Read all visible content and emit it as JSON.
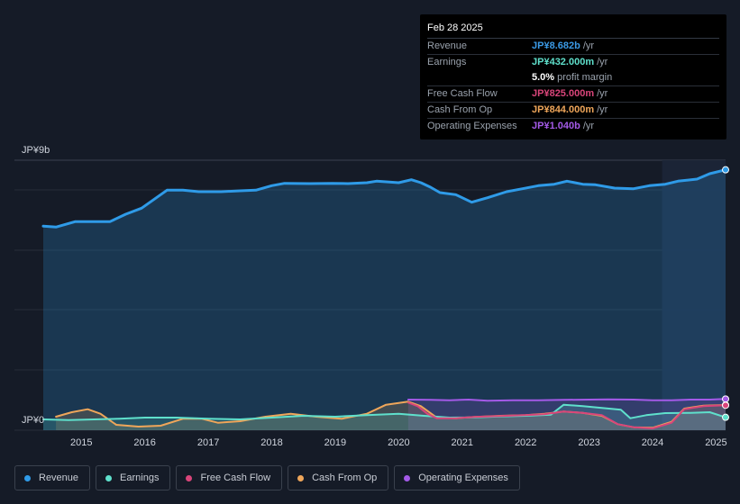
{
  "chart_data": {
    "type": "line",
    "y_axis": {
      "top_label": "JP¥9b",
      "bottom_label": "JP¥0",
      "ylim": [
        0,
        9.0
      ]
    },
    "x_ticks": [
      "2015",
      "2016",
      "2017",
      "2018",
      "2019",
      "2020",
      "2021",
      "2022",
      "2023",
      "2024",
      "2025"
    ],
    "x_range": [
      2014.4,
      2025.15
    ],
    "forecast_start": 2024.15,
    "series": [
      {
        "name": "Revenue",
        "color": "#2f9be8",
        "area": true,
        "points": [
          [
            2014.4,
            6.8
          ],
          [
            2014.6,
            6.77
          ],
          [
            2014.9,
            6.95
          ],
          [
            2015.2,
            6.95
          ],
          [
            2015.45,
            6.95
          ],
          [
            2015.7,
            7.2
          ],
          [
            2015.95,
            7.4
          ],
          [
            2016.15,
            7.7
          ],
          [
            2016.35,
            8.0
          ],
          [
            2016.6,
            8.0
          ],
          [
            2016.85,
            7.95
          ],
          [
            2017.2,
            7.95
          ],
          [
            2017.5,
            7.98
          ],
          [
            2017.75,
            8.0
          ],
          [
            2018.0,
            8.15
          ],
          [
            2018.2,
            8.23
          ],
          [
            2018.6,
            8.22
          ],
          [
            2018.95,
            8.23
          ],
          [
            2019.2,
            8.22
          ],
          [
            2019.5,
            8.25
          ],
          [
            2019.65,
            8.3
          ],
          [
            2019.85,
            8.27
          ],
          [
            2020.0,
            8.25
          ],
          [
            2020.2,
            8.35
          ],
          [
            2020.35,
            8.25
          ],
          [
            2020.5,
            8.1
          ],
          [
            2020.65,
            7.92
          ],
          [
            2020.9,
            7.85
          ],
          [
            2021.15,
            7.6
          ],
          [
            2021.4,
            7.75
          ],
          [
            2021.7,
            7.95
          ],
          [
            2021.95,
            8.05
          ],
          [
            2022.2,
            8.15
          ],
          [
            2022.45,
            8.2
          ],
          [
            2022.65,
            8.3
          ],
          [
            2022.9,
            8.2
          ],
          [
            2023.1,
            8.18
          ],
          [
            2023.4,
            8.07
          ],
          [
            2023.7,
            8.05
          ],
          [
            2023.95,
            8.15
          ],
          [
            2024.2,
            8.2
          ],
          [
            2024.4,
            8.3
          ],
          [
            2024.7,
            8.37
          ],
          [
            2024.9,
            8.55
          ],
          [
            2025.15,
            8.68
          ]
        ]
      },
      {
        "name": "Earnings",
        "color": "#5fe0cc",
        "area": true,
        "points": [
          [
            2014.4,
            0.36
          ],
          [
            2014.8,
            0.34
          ],
          [
            2015.2,
            0.36
          ],
          [
            2015.6,
            0.38
          ],
          [
            2016.0,
            0.42
          ],
          [
            2016.5,
            0.42
          ],
          [
            2017.0,
            0.38
          ],
          [
            2017.5,
            0.36
          ],
          [
            2018.0,
            0.42
          ],
          [
            2018.5,
            0.48
          ],
          [
            2019.0,
            0.45
          ],
          [
            2019.5,
            0.5
          ],
          [
            2020.0,
            0.55
          ],
          [
            2020.4,
            0.48
          ],
          [
            2020.8,
            0.42
          ],
          [
            2021.2,
            0.43
          ],
          [
            2021.6,
            0.46
          ],
          [
            2022.0,
            0.48
          ],
          [
            2022.4,
            0.52
          ],
          [
            2022.6,
            0.85
          ],
          [
            2022.9,
            0.8
          ],
          [
            2023.2,
            0.74
          ],
          [
            2023.5,
            0.68
          ],
          [
            2023.65,
            0.4
          ],
          [
            2023.9,
            0.5
          ],
          [
            2024.2,
            0.57
          ],
          [
            2024.6,
            0.58
          ],
          [
            2024.9,
            0.6
          ],
          [
            2025.15,
            0.43
          ]
        ]
      },
      {
        "name": "Free Cash Flow",
        "color": "#d9457a",
        "area": false,
        "points": [
          [
            2020.15,
            0.92
          ],
          [
            2020.3,
            0.8
          ],
          [
            2020.45,
            0.55
          ],
          [
            2020.6,
            0.4
          ],
          [
            2020.9,
            0.4
          ],
          [
            2021.2,
            0.44
          ],
          [
            2021.6,
            0.47
          ],
          [
            2022.0,
            0.5
          ],
          [
            2022.3,
            0.53
          ],
          [
            2022.6,
            0.62
          ],
          [
            2022.9,
            0.58
          ],
          [
            2023.2,
            0.5
          ],
          [
            2023.45,
            0.2
          ],
          [
            2023.7,
            0.1
          ],
          [
            2024.0,
            0.06
          ],
          [
            2024.3,
            0.25
          ],
          [
            2024.5,
            0.7
          ],
          [
            2024.8,
            0.8
          ],
          [
            2025.15,
            0.83
          ]
        ]
      },
      {
        "name": "Cash From Op",
        "color": "#efa65a",
        "area": true,
        "points": [
          [
            2014.6,
            0.45
          ],
          [
            2014.85,
            0.6
          ],
          [
            2015.1,
            0.7
          ],
          [
            2015.3,
            0.55
          ],
          [
            2015.55,
            0.18
          ],
          [
            2015.9,
            0.12
          ],
          [
            2016.25,
            0.15
          ],
          [
            2016.6,
            0.38
          ],
          [
            2016.9,
            0.38
          ],
          [
            2017.15,
            0.25
          ],
          [
            2017.5,
            0.3
          ],
          [
            2017.9,
            0.45
          ],
          [
            2018.3,
            0.55
          ],
          [
            2018.7,
            0.45
          ],
          [
            2019.1,
            0.38
          ],
          [
            2019.5,
            0.55
          ],
          [
            2019.8,
            0.85
          ],
          [
            2020.15,
            0.95
          ],
          [
            2020.35,
            0.8
          ],
          [
            2020.6,
            0.42
          ],
          [
            2020.9,
            0.4
          ],
          [
            2021.2,
            0.44
          ],
          [
            2021.6,
            0.48
          ],
          [
            2022.0,
            0.5
          ],
          [
            2022.3,
            0.55
          ],
          [
            2022.6,
            0.62
          ],
          [
            2022.9,
            0.58
          ],
          [
            2023.2,
            0.48
          ],
          [
            2023.45,
            0.2
          ],
          [
            2023.7,
            0.1
          ],
          [
            2024.0,
            0.08
          ],
          [
            2024.3,
            0.28
          ],
          [
            2024.5,
            0.72
          ],
          [
            2024.8,
            0.82
          ],
          [
            2025.15,
            0.84
          ]
        ]
      },
      {
        "name": "Operating Expenses",
        "color": "#a45ae8",
        "area": true,
        "points": [
          [
            2020.15,
            1.02
          ],
          [
            2020.5,
            1.01
          ],
          [
            2020.8,
            1.0
          ],
          [
            2021.1,
            1.02
          ],
          [
            2021.4,
            0.98
          ],
          [
            2021.8,
            1.0
          ],
          [
            2022.2,
            1.0
          ],
          [
            2022.6,
            1.01
          ],
          [
            2023.0,
            1.02
          ],
          [
            2023.3,
            1.03
          ],
          [
            2023.7,
            1.02
          ],
          [
            2024.0,
            1.0
          ],
          [
            2024.3,
            1.0
          ],
          [
            2024.6,
            1.02
          ],
          [
            2024.9,
            1.02
          ],
          [
            2025.15,
            1.04
          ]
        ]
      }
    ]
  },
  "tooltip": {
    "date": "Feb 28 2025",
    "rows": [
      {
        "label": "Revenue",
        "value": "JP¥8.682b",
        "unit": "/yr",
        "color": "#3b9ae6"
      },
      {
        "label": "Earnings",
        "value": "JP¥432.000m",
        "unit": "/yr",
        "color": "#5fe0cc"
      },
      {
        "label": "",
        "value": "5.0%",
        "unit": "profit margin",
        "color": "#ffffff"
      },
      {
        "label": "Free Cash Flow",
        "value": "JP¥825.000m",
        "unit": "/yr",
        "color": "#d9457a"
      },
      {
        "label": "Cash From Op",
        "value": "JP¥844.000m",
        "unit": "/yr",
        "color": "#efa65a"
      },
      {
        "label": "Operating Expenses",
        "value": "JP¥1.040b",
        "unit": "/yr",
        "color": "#a45ae8"
      }
    ]
  },
  "legend": [
    {
      "label": "Revenue",
      "color": "#2f9be8"
    },
    {
      "label": "Earnings",
      "color": "#5fe0cc"
    },
    {
      "label": "Free Cash Flow",
      "color": "#d9457a"
    },
    {
      "label": "Cash From Op",
      "color": "#efa65a"
    },
    {
      "label": "Operating Expenses",
      "color": "#a45ae8"
    }
  ]
}
